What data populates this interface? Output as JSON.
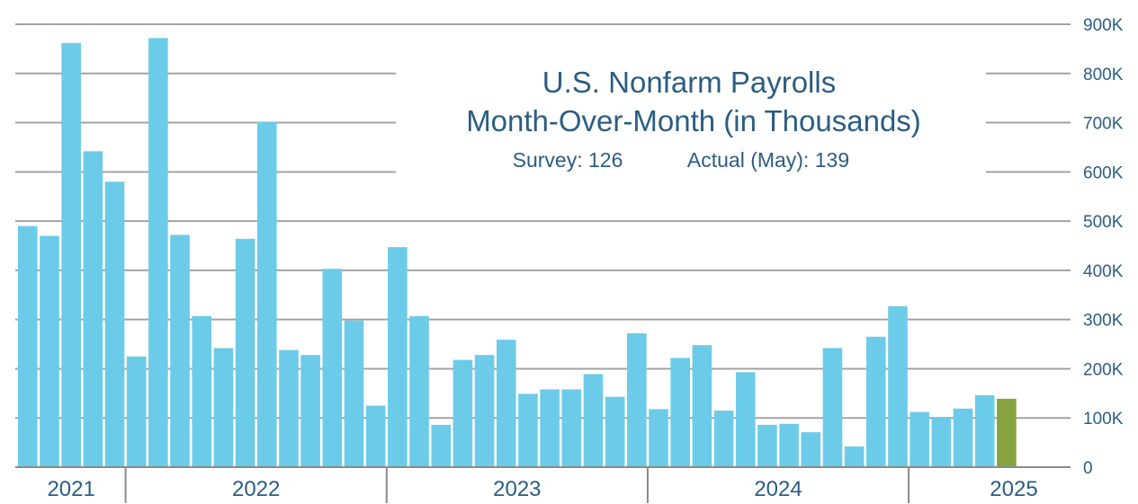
{
  "chart_data": {
    "type": "bar",
    "title_line1": "U.S. Nonfarm Payrolls",
    "title_line2": "Month-Over-Month (in Thousands)",
    "survey_text": "Survey: 126",
    "actual_text": "Actual (May): 139",
    "ylim": [
      0,
      900
    ],
    "yticks": [
      {
        "value": 0,
        "label": "0"
      },
      {
        "value": 100,
        "label": "100K"
      },
      {
        "value": 200,
        "label": "200K"
      },
      {
        "value": 300,
        "label": "300K"
      },
      {
        "value": 400,
        "label": "400K"
      },
      {
        "value": 500,
        "label": "500K"
      },
      {
        "value": 600,
        "label": "600K"
      },
      {
        "value": 700,
        "label": "700K"
      },
      {
        "value": 800,
        "label": "800K"
      },
      {
        "value": 900,
        "label": "900K"
      }
    ],
    "grid": true,
    "years": [
      {
        "label": "2021",
        "start_index": 0,
        "end_index": 4
      },
      {
        "label": "2022",
        "start_index": 5,
        "end_index": 16
      },
      {
        "label": "2023",
        "start_index": 17,
        "end_index": 28
      },
      {
        "label": "2024",
        "start_index": 29,
        "end_index": 40
      },
      {
        "label": "2025",
        "start_index": 41,
        "end_index": 45
      }
    ],
    "values": [
      490,
      470,
      862,
      642,
      580,
      225,
      872,
      472,
      307,
      242,
      464,
      701,
      238,
      228,
      403,
      298,
      125,
      447,
      307,
      86,
      218,
      228,
      259,
      149,
      158,
      158,
      189,
      143,
      272,
      118,
      222,
      248,
      115,
      193,
      86,
      88,
      71,
      242,
      42,
      265,
      327,
      112,
      102,
      119,
      146,
      139
    ],
    "highlight_index": 45,
    "colors": {
      "bar": "#6ccbe8",
      "highlight": "#86a33f",
      "grid": "#a3a3a3",
      "text": "#2b5d82"
    }
  }
}
